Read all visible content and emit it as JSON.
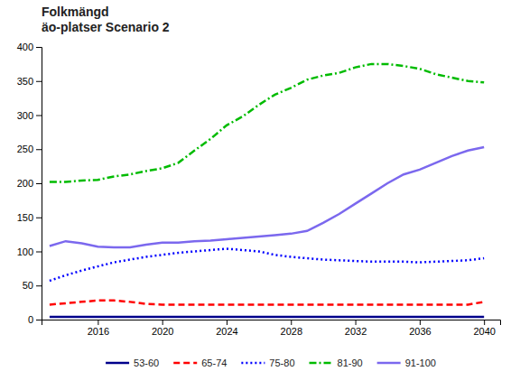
{
  "chart_data": {
    "type": "line",
    "title": "Folkmängd\näo-platser Scenario 2",
    "x": [
      2013,
      2014,
      2015,
      2016,
      2017,
      2018,
      2019,
      2020,
      2021,
      2022,
      2023,
      2024,
      2025,
      2026,
      2027,
      2028,
      2029,
      2030,
      2031,
      2032,
      2033,
      2034,
      2035,
      2036,
      2037,
      2038,
      2039,
      2040
    ],
    "series": [
      {
        "name": "53-60",
        "color": "#00008B",
        "line_style": "solid",
        "values": [
          4,
          4,
          4,
          4,
          4,
          4,
          4,
          4,
          4,
          4,
          4,
          4,
          4,
          4,
          4,
          4,
          4,
          4,
          4,
          4,
          4,
          4,
          4,
          4,
          4,
          4,
          4,
          4
        ]
      },
      {
        "name": "65-74",
        "color": "#FF0000",
        "line_style": "dashed",
        "values": [
          22,
          24,
          26,
          28,
          28,
          26,
          23,
          22,
          22,
          22,
          22,
          22,
          22,
          22,
          22,
          22,
          22,
          22,
          22,
          22,
          22,
          22,
          22,
          22,
          22,
          22,
          22,
          26
        ]
      },
      {
        "name": "75-80",
        "color": "#0000FF",
        "line_style": "dotted",
        "values": [
          57,
          65,
          72,
          78,
          84,
          88,
          92,
          95,
          98,
          100,
          102,
          104,
          102,
          100,
          95,
          92,
          90,
          88,
          87,
          86,
          85,
          85,
          85,
          84,
          85,
          86,
          87,
          90
        ]
      },
      {
        "name": "81-90",
        "color": "#00BB00",
        "line_style": "dashdot",
        "values": [
          202,
          202,
          204,
          205,
          210,
          213,
          218,
          222,
          230,
          248,
          265,
          285,
          298,
          315,
          330,
          340,
          352,
          358,
          362,
          370,
          375,
          375,
          372,
          368,
          360,
          355,
          350,
          348
        ]
      },
      {
        "name": "91-100",
        "color": "#7B68EE",
        "line_style": "solid",
        "values": [
          108,
          115,
          112,
          107,
          106,
          106,
          110,
          113,
          113,
          115,
          116,
          118,
          120,
          122,
          124,
          126,
          130,
          142,
          155,
          170,
          185,
          200,
          213,
          220,
          230,
          240,
          248,
          253
        ]
      }
    ],
    "xlim": [
      2012.5,
      2041
    ],
    "xticks": [
      2016,
      2020,
      2024,
      2028,
      2032,
      2036,
      2040
    ],
    "ylim": [
      0,
      400
    ],
    "yticks": [
      0,
      50,
      100,
      150,
      200,
      250,
      300,
      350,
      400
    ],
    "grid": false,
    "legend": "bottom"
  }
}
